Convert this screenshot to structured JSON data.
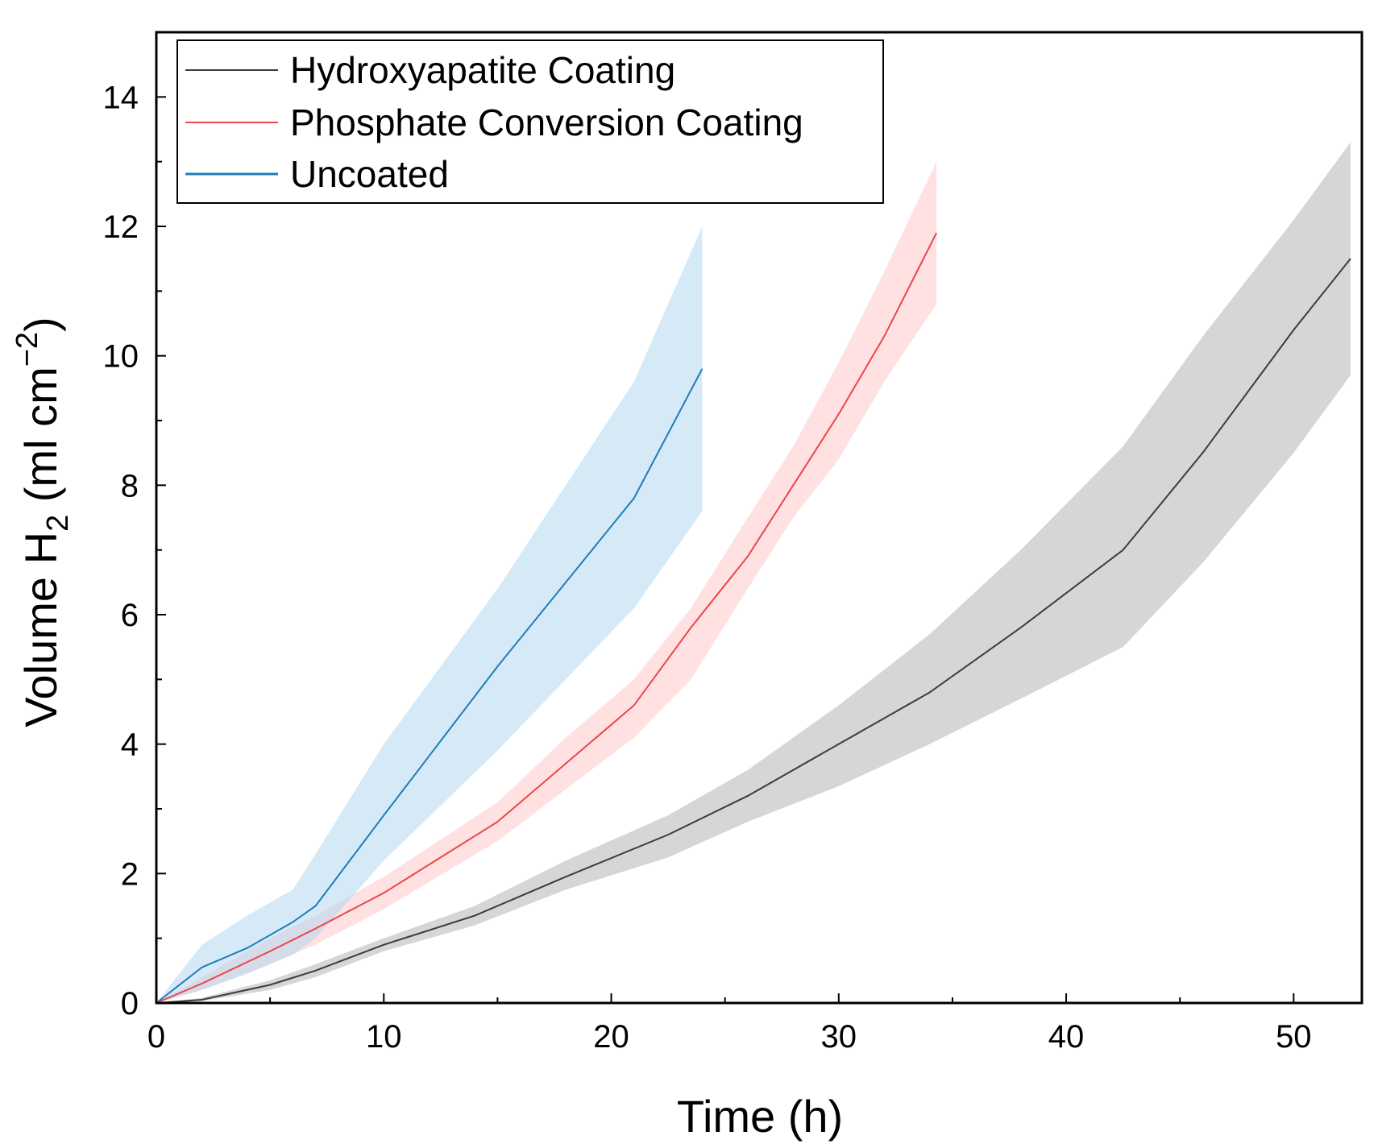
{
  "chart_data": {
    "type": "line",
    "title": "",
    "xlabel": "Time (h)",
    "ylabel": {
      "prefix": "Volume H",
      "sub": "2",
      "middle": " (ml cm",
      "sup": "−2",
      "suffix": ")"
    },
    "xlim": [
      0,
      53
    ],
    "ylim": [
      0,
      15
    ],
    "x_ticks": [
      0,
      10,
      20,
      30,
      40,
      50
    ],
    "y_ticks": [
      0,
      2,
      4,
      6,
      8,
      10,
      12,
      14
    ],
    "x_tick_labels": [
      "0",
      "10",
      "20",
      "30",
      "40",
      "50"
    ],
    "y_tick_labels": [
      "0",
      "2",
      "4",
      "6",
      "8",
      "10",
      "12",
      "14"
    ],
    "grid": false,
    "legend_position": "top-left",
    "series": [
      {
        "name": "Hydroxyapatite Coating",
        "line_color": "#3c3c3c",
        "band_color": "#b4b4b4",
        "x": [
          0,
          2,
          5,
          7,
          10,
          14,
          18,
          22.5,
          26,
          30,
          34,
          38,
          42.5,
          46,
          50,
          52.5
        ],
        "y": [
          0,
          0.05,
          0.28,
          0.5,
          0.9,
          1.35,
          1.95,
          2.6,
          3.2,
          4.0,
          4.8,
          5.8,
          7.0,
          8.5,
          10.4,
          11.5
        ],
        "lower": [
          0,
          0.03,
          0.2,
          0.4,
          0.8,
          1.2,
          1.75,
          2.25,
          2.8,
          3.35,
          4.0,
          4.7,
          5.5,
          6.8,
          8.5,
          9.7
        ],
        "upper": [
          0,
          0.08,
          0.35,
          0.6,
          1.0,
          1.5,
          2.2,
          2.9,
          3.6,
          4.6,
          5.7,
          7.0,
          8.6,
          10.3,
          12.1,
          13.3
        ]
      },
      {
        "name": "Phosphate Conversion Coating",
        "line_color": "#e8474b",
        "band_color": "#ffc8c8",
        "x": [
          0,
          2,
          5,
          7,
          10,
          15,
          18,
          21,
          23.5,
          26,
          28,
          30,
          32,
          34.3
        ],
        "y": [
          0,
          0.3,
          0.8,
          1.15,
          1.7,
          2.8,
          3.7,
          4.6,
          5.8,
          6.9,
          8.0,
          9.1,
          10.3,
          11.9
        ],
        "lower": [
          0,
          0.2,
          0.6,
          0.9,
          1.45,
          2.5,
          3.3,
          4.1,
          5.0,
          6.4,
          7.5,
          8.4,
          9.6,
          10.8
        ],
        "upper": [
          0,
          0.4,
          1.0,
          1.35,
          1.95,
          3.1,
          4.1,
          5.0,
          6.1,
          7.5,
          8.6,
          9.9,
          11.3,
          13.0
        ]
      },
      {
        "name": "Uncoated",
        "line_color": "#1f7cba",
        "band_color": "#b4d7f0",
        "x": [
          0,
          2,
          4,
          6,
          7,
          10,
          15,
          18,
          21,
          24
        ],
        "y": [
          0,
          0.55,
          0.85,
          1.25,
          1.5,
          2.9,
          5.2,
          6.5,
          7.8,
          9.8
        ],
        "lower": [
          0,
          0.2,
          0.45,
          0.75,
          1.0,
          2.2,
          3.9,
          5.0,
          6.1,
          7.6
        ],
        "upper": [
          0,
          0.9,
          1.35,
          1.75,
          2.3,
          4.0,
          6.4,
          8.0,
          9.6,
          12.0
        ]
      }
    ]
  }
}
